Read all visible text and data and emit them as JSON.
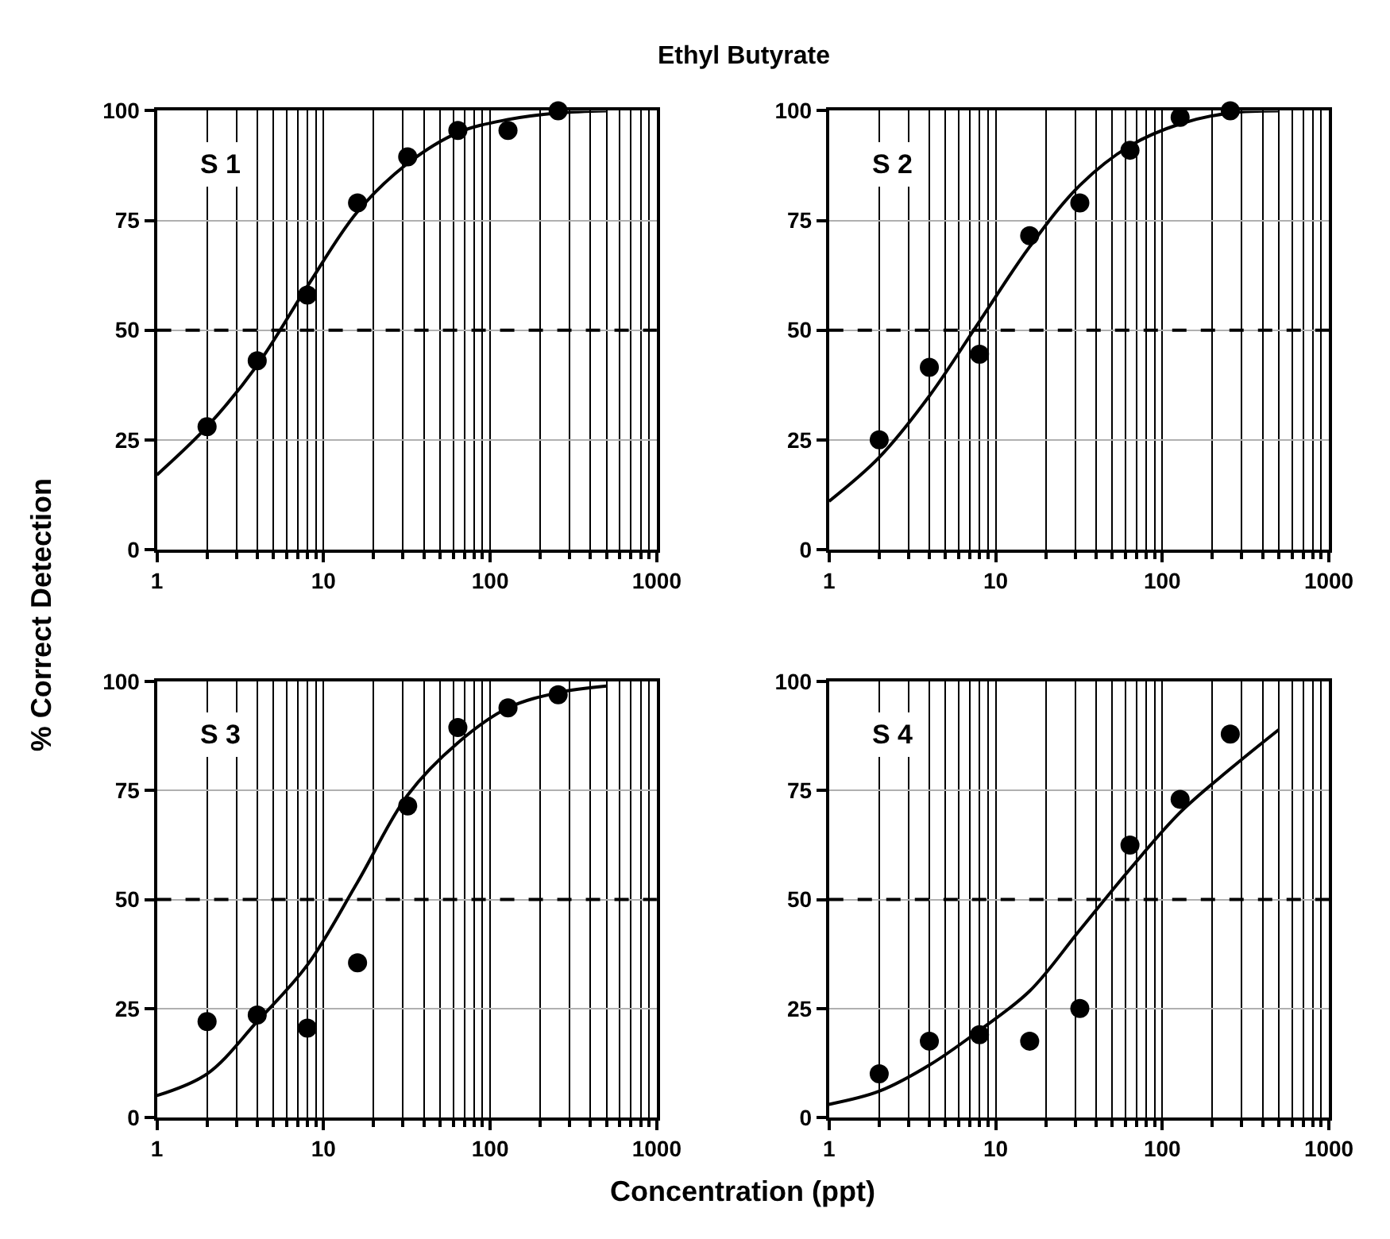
{
  "chart_data": [
    {
      "type": "scatter",
      "title": "Ethyl Butyrate",
      "ylabel": "% Correct Detection",
      "annotations": [
        "S 1"
      ],
      "xlim": [
        1,
        1000
      ],
      "xticks": [
        1,
        10,
        100,
        1000
      ],
      "ylim": [
        0,
        100
      ],
      "yticks": [
        0,
        25,
        50,
        75,
        100
      ],
      "log": "x",
      "grid": true,
      "ref_lines": [
        {
          "axis": "y",
          "value": 50,
          "line_style": "dashed",
          "color": "#000000"
        }
      ],
      "series": [
        {
          "color": "#000000",
          "marker": "circle",
          "x": [
            2,
            4,
            8,
            16,
            32,
            64,
            128,
            256
          ],
          "values": [
            28,
            43,
            58,
            79,
            89.5,
            95.5,
            95.5,
            100
          ]
        },
        {
          "type": "line",
          "marker": "none",
          "color": "#000000",
          "x": [
            1,
            2,
            4,
            8,
            16,
            32,
            64,
            128,
            256,
            500
          ],
          "values": [
            17,
            28,
            42,
            60,
            77,
            88,
            95,
            98,
            99.5,
            100
          ]
        }
      ]
    },
    {
      "type": "scatter",
      "annotations": [
        "S 2"
      ],
      "xlim": [
        1,
        1000
      ],
      "xticks": [
        1,
        10,
        100,
        1000
      ],
      "ylim": [
        0,
        100
      ],
      "yticks": [
        0,
        25,
        50,
        75,
        100
      ],
      "log": "x",
      "grid": true,
      "ref_lines": [
        {
          "axis": "y",
          "value": 50,
          "line_style": "dashed",
          "color": "#000000"
        }
      ],
      "series": [
        {
          "color": "#000000",
          "marker": "circle",
          "x": [
            2,
            4,
            8,
            16,
            32,
            64,
            128,
            256
          ],
          "values": [
            25,
            41.5,
            44.5,
            71.5,
            79,
            91,
            98.5,
            100
          ]
        },
        {
          "type": "line",
          "marker": "none",
          "color": "#000000",
          "x": [
            1,
            2,
            4,
            8,
            16,
            32,
            64,
            128,
            256,
            500
          ],
          "values": [
            11,
            21,
            35,
            52,
            69,
            83,
            92,
            97,
            99.5,
            100
          ]
        }
      ]
    },
    {
      "type": "scatter",
      "xlabel": "Concentration (ppt)",
      "annotations": [
        "S 3"
      ],
      "xlim": [
        1,
        1000
      ],
      "xticks": [
        1,
        10,
        100,
        1000
      ],
      "ylim": [
        0,
        100
      ],
      "yticks": [
        0,
        25,
        50,
        75,
        100
      ],
      "log": "x",
      "grid": true,
      "ref_lines": [
        {
          "axis": "y",
          "value": 50,
          "line_style": "dashed",
          "color": "#000000"
        }
      ],
      "series": [
        {
          "color": "#000000",
          "marker": "circle",
          "x": [
            2,
            4,
            8,
            16,
            32,
            64,
            128,
            256
          ],
          "values": [
            22,
            23.5,
            20.5,
            35.5,
            71.5,
            89.5,
            94,
            97
          ]
        },
        {
          "type": "line",
          "marker": "none",
          "color": "#000000",
          "x": [
            1,
            2,
            4,
            8,
            16,
            32,
            64,
            128,
            256,
            500
          ],
          "values": [
            5,
            10,
            22,
            35,
            54,
            74,
            86,
            94,
            97.5,
            99
          ]
        }
      ]
    },
    {
      "type": "scatter",
      "annotations": [
        "S 4"
      ],
      "xlim": [
        1,
        1000
      ],
      "xticks": [
        1,
        10,
        100,
        1000
      ],
      "ylim": [
        0,
        100
      ],
      "yticks": [
        0,
        25,
        50,
        75,
        100
      ],
      "log": "x",
      "grid": true,
      "ref_lines": [
        {
          "axis": "y",
          "value": 50,
          "line_style": "dashed",
          "color": "#000000"
        }
      ],
      "series": [
        {
          "color": "#000000",
          "marker": "circle",
          "x": [
            2,
            4,
            8,
            16,
            32,
            64,
            128,
            256
          ],
          "values": [
            10,
            17.5,
            19,
            17.5,
            25,
            62.5,
            73,
            88
          ]
        },
        {
          "type": "line",
          "marker": "none",
          "color": "#000000",
          "x": [
            1,
            2,
            4,
            8,
            16,
            32,
            64,
            128,
            256,
            500
          ],
          "values": [
            3,
            6,
            12,
            20,
            29,
            43,
            57,
            70,
            80,
            89
          ]
        }
      ]
    }
  ]
}
